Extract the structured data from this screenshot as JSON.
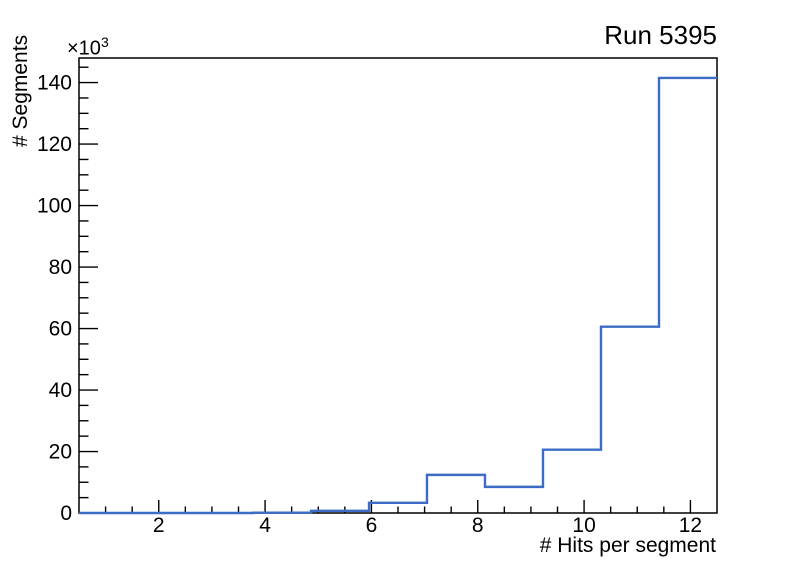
{
  "title": "Run 5395",
  "y_axis": {
    "label": "# Segments",
    "multiplier_base": "×10",
    "multiplier_exp": "3",
    "tick_values": [
      0,
      20000,
      40000,
      60000,
      80000,
      100000,
      120000,
      140000
    ],
    "tick_labels": [
      "0",
      "20",
      "40",
      "60",
      "80",
      "100",
      "120",
      "140"
    ],
    "minor_step": 5000
  },
  "x_axis": {
    "label": "# Hits per segment",
    "tick_values": [
      2,
      4,
      6,
      8,
      10,
      12
    ],
    "tick_labels": [
      "2",
      "4",
      "6",
      "8",
      "10",
      "12"
    ],
    "minor_step": 0.5
  },
  "chart_data": {
    "type": "bar",
    "subtype": "step-histogram-outline",
    "title": "Run 5395",
    "xlabel": "# Hits per segment",
    "ylabel": "# Segments (×10³)",
    "xlim": [
      0.5,
      12.5
    ],
    "ylim": [
      0,
      148000
    ],
    "grid": false,
    "legend": false,
    "bin_edges": [
      0.5,
      1.591,
      2.682,
      3.773,
      4.864,
      5.955,
      7.045,
      8.136,
      9.227,
      10.318,
      11.409,
      12.5
    ],
    "values": [
      0,
      0,
      0,
      100,
      700,
      3300,
      12400,
      8500,
      20600,
      60600,
      141500
    ],
    "line_color": "#3c6cc5",
    "frame_color": "#000000",
    "background_color": "#ffffff"
  }
}
